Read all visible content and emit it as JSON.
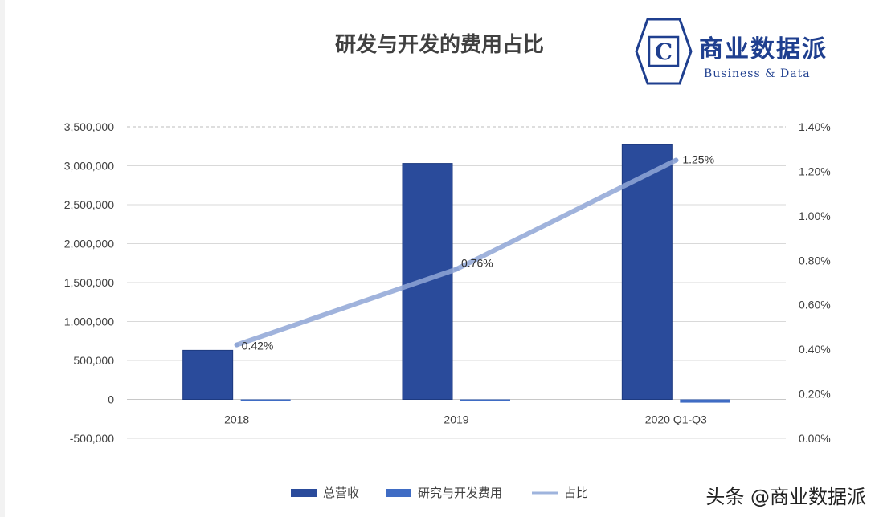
{
  "chart_data": {
    "type": "bar+line",
    "title": "研发与开发的费用占比",
    "categories": [
      "2018",
      "2019",
      "2020 Q1-Q3"
    ],
    "series": [
      {
        "name": "总营收",
        "type": "bar",
        "axis": "left",
        "values": [
          630000,
          3030000,
          3270000
        ],
        "color": "#2a4b9b"
      },
      {
        "name": "研究与开发费用",
        "type": "bar",
        "axis": "left",
        "values": [
          2600,
          23000,
          42000
        ],
        "color": "#3f6cc4"
      },
      {
        "name": "占比",
        "type": "line",
        "axis": "right",
        "values": [
          0.0042,
          0.0076,
          0.0125
        ],
        "labels": [
          "0.42%",
          "0.76%",
          "1.25%"
        ],
        "color": "#9fb4dd"
      }
    ],
    "y_left": {
      "min": -500000,
      "max": 3500000,
      "ticks": [
        -500000,
        0,
        500000,
        1000000,
        1500000,
        2000000,
        2500000,
        3000000,
        3500000
      ],
      "tick_labels": [
        "-500,000",
        "0",
        "500,000",
        "1,000,000",
        "1,500,000",
        "2,000,000",
        "2,500,000",
        "3,000,000",
        "3,500,000"
      ]
    },
    "y_right": {
      "min": 0,
      "max": 0.014,
      "ticks": [
        0,
        0.002,
        0.004,
        0.006,
        0.008,
        0.01,
        0.012,
        0.014
      ],
      "tick_labels": [
        "0.00%",
        "0.20%",
        "0.40%",
        "0.60%",
        "0.80%",
        "1.00%",
        "1.20%",
        "1.40%"
      ]
    },
    "grid": true,
    "legend": "bottom"
  },
  "logo": {
    "name": "商业数据派",
    "subtitle": "Business & Data",
    "letter": "C"
  },
  "watermark": "头条 @商业数据派"
}
